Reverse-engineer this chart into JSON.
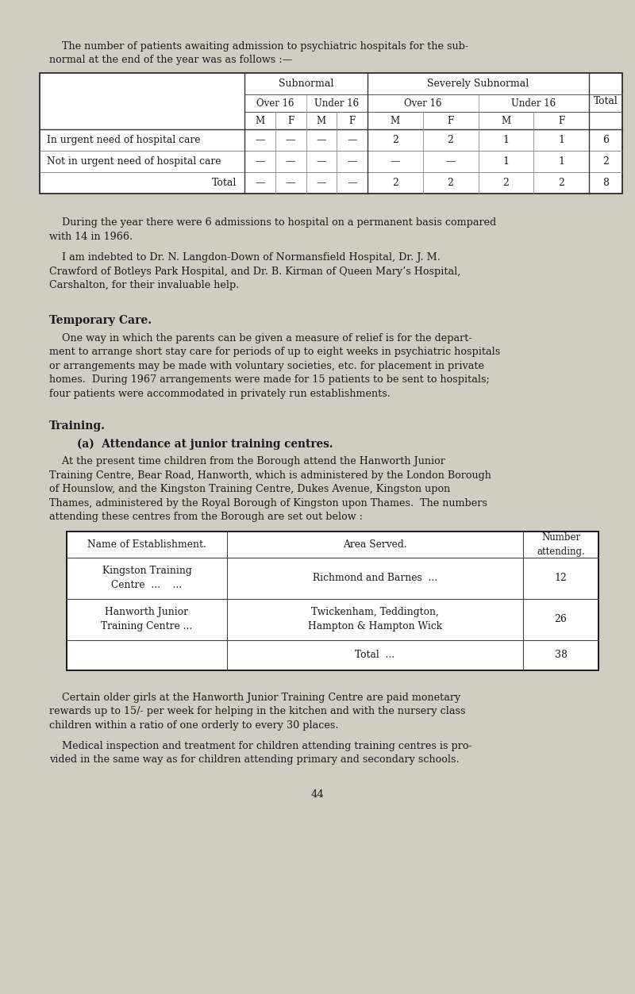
{
  "bg_color": "#d0cdc3",
  "text_color": "#1a1a1a",
  "page_width": 8.0,
  "page_height": 12.53,
  "intro_text_line1": "    The number of patients awaiting admission to psychiatric hospitals for the sub-",
  "intro_text_line2": "normal at the end of the year was as follows :—",
  "para1_line1": "    During the year there were 6 admissions to hospital on a permanent basis compared",
  "para1_line2": "with 14 in 1966.",
  "para2_line1": "    I am indebted to Dr. N. Langdon-Down of Normansfield Hospital, Dr. J. M.",
  "para2_line2": "Crawford of Botleys Park Hospital, and Dr. B. Kirman of Queen Mary’s Hospital,",
  "para2_line3": "Carshalton, for their invaluable help.",
  "heading1": "Temporary Care.",
  "para3_line1": "    One way in which the parents can be given a measure of relief is for the depart-",
  "para3_line2": "ment to arrange short stay care for periods of up to eight weeks in psychiatric hospitals",
  "para3_line3": "or arrangements may be made with voluntary societies, etc. for placement in private",
  "para3_line4": "homes.  During 1967 arrangements were made for 15 patients to be sent to hospitals;",
  "para3_line5": "four patients were accommodated in privately run establishments.",
  "heading2": "Training.",
  "subheading1": "(a)  Attendance at junior training centres.",
  "para4_line1": "    At the present time children from the Borough attend the Hanworth Junior",
  "para4_line2": "Training Centre, Bear Road, Hanworth, which is administered by the London Borough",
  "para4_line3": "of Hounslow, and the Kingston Training Centre, Dukes Avenue, Kingston upon",
  "para4_line4": "Thames, administered by the Royal Borough of Kingston upon Thames.  The numbers",
  "para4_line5": "attending these centres from the Borough are set out below :",
  "para5_line1": "    Certain older girls at the Hanworth Junior Training Centre are paid monetary",
  "para5_line2": "rewards up to 15/- per week for helping in the kitchen and with the nursery class",
  "para5_line3": "children within a ratio of one orderly to every 30 places.",
  "para6_line1": "    Medical inspection and treatment for children attending training centres is pro-",
  "para6_line2": "vided in the same way as for children attending primary and secondary schools.",
  "page_number": "44",
  "lh": 0.175
}
